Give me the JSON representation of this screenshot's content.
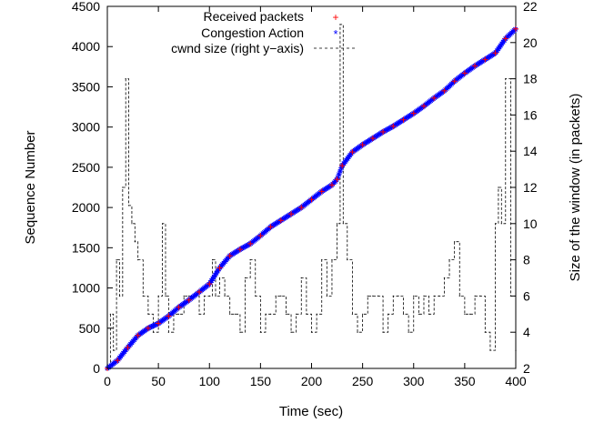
{
  "chart_data": {
    "type": "scatter",
    "xlabel": "Time (sec)",
    "ylabel": "Sequence Number",
    "y2label": "Size of the window (in packets)",
    "xlim": [
      0,
      400
    ],
    "ylim": [
      0,
      4500
    ],
    "y2lim": [
      2,
      22
    ],
    "xticks": [
      0,
      50,
      100,
      150,
      200,
      250,
      300,
      350,
      400
    ],
    "yticks": [
      0,
      500,
      1000,
      1500,
      2000,
      2500,
      3000,
      3500,
      4000,
      4500
    ],
    "y2ticks": [
      2,
      4,
      6,
      8,
      10,
      12,
      14,
      16,
      18,
      20,
      22
    ],
    "grid": false,
    "legend_position": "top-center",
    "series": [
      {
        "name": "Received packets",
        "marker": "+",
        "color": "#ff0000",
        "axis": "left",
        "x": [
          0,
          10,
          20,
          30,
          40,
          50,
          60,
          70,
          80,
          90,
          100,
          110,
          120,
          130,
          140,
          150,
          160,
          170,
          180,
          190,
          200,
          210,
          220,
          225,
          230,
          240,
          250,
          260,
          270,
          280,
          290,
          300,
          310,
          320,
          330,
          340,
          350,
          360,
          370,
          380,
          390,
          400
        ],
        "values": [
          0,
          100,
          260,
          410,
          500,
          560,
          650,
          760,
          850,
          950,
          1050,
          1250,
          1400,
          1480,
          1550,
          1650,
          1760,
          1840,
          1920,
          2000,
          2100,
          2200,
          2280,
          2350,
          2520,
          2690,
          2780,
          2860,
          2940,
          3010,
          3090,
          3170,
          3260,
          3360,
          3450,
          3570,
          3670,
          3760,
          3840,
          3920,
          4100,
          4220
        ]
      },
      {
        "name": "Congestion Action",
        "marker": "*",
        "color": "#0000ff",
        "axis": "left",
        "x": [
          0,
          10,
          20,
          30,
          40,
          50,
          60,
          70,
          80,
          90,
          100,
          110,
          120,
          130,
          140,
          150,
          160,
          170,
          180,
          190,
          200,
          210,
          220,
          225,
          230,
          240,
          250,
          260,
          270,
          280,
          290,
          300,
          310,
          320,
          330,
          340,
          350,
          360,
          370,
          380,
          390,
          400
        ],
        "values": [
          0,
          100,
          260,
          410,
          500,
          560,
          650,
          760,
          850,
          950,
          1050,
          1250,
          1400,
          1480,
          1550,
          1650,
          1760,
          1840,
          1920,
          2000,
          2100,
          2200,
          2280,
          2350,
          2520,
          2690,
          2780,
          2860,
          2940,
          3010,
          3090,
          3170,
          3260,
          3360,
          3450,
          3570,
          3670,
          3760,
          3840,
          3920,
          4100,
          4220
        ]
      },
      {
        "name": "cwnd size (right y−axis)",
        "marker": "dash",
        "color": "#000000",
        "axis": "right",
        "x": [
          0,
          3,
          6,
          9,
          12,
          15,
          18,
          21,
          24,
          27,
          30,
          35,
          40,
          45,
          50,
          54,
          57,
          60,
          65,
          70,
          75,
          80,
          85,
          90,
          95,
          100,
          103,
          106,
          110,
          115,
          120,
          125,
          130,
          135,
          140,
          145,
          150,
          155,
          160,
          165,
          170,
          175,
          180,
          185,
          190,
          195,
          200,
          205,
          210,
          215,
          220,
          225,
          228,
          231,
          235,
          240,
          245,
          250,
          255,
          260,
          265,
          270,
          275,
          280,
          285,
          290,
          295,
          300,
          305,
          310,
          315,
          320,
          325,
          330,
          335,
          340,
          345,
          350,
          355,
          360,
          365,
          370,
          375,
          380,
          383,
          386,
          390,
          395,
          400
        ],
        "values": [
          2,
          5,
          3,
          8,
          6,
          12,
          18,
          11,
          10,
          9,
          8,
          6,
          5,
          4,
          6,
          10,
          6,
          4,
          5,
          5,
          6,
          6,
          6,
          5,
          6,
          6,
          8,
          6,
          7,
          6,
          5,
          5,
          4,
          7,
          8,
          6,
          4,
          5,
          5,
          6,
          6,
          5,
          4,
          5,
          7,
          5,
          4,
          5,
          8,
          6,
          8,
          10,
          21,
          10,
          8,
          5,
          4,
          5,
          6,
          6,
          6,
          4,
          5,
          6,
          6,
          5,
          4,
          6,
          5,
          6,
          5,
          6,
          6,
          7,
          8,
          9,
          6,
          5,
          5,
          6,
          6,
          4,
          3,
          10,
          12,
          10,
          18,
          6,
          3
        ]
      }
    ]
  }
}
